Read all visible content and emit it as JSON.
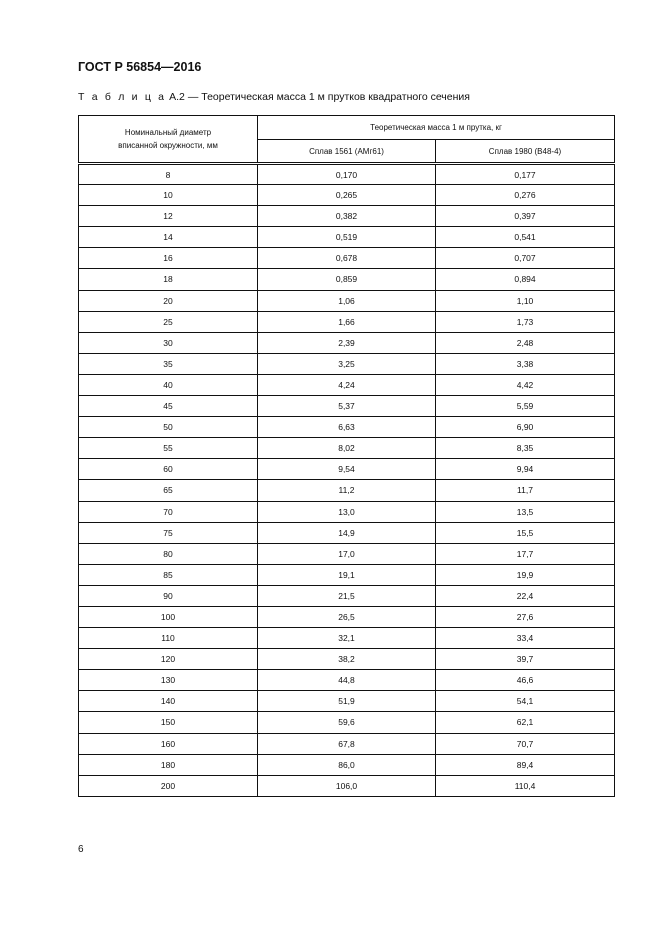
{
  "document": {
    "code": "ГОСТ Р 56854—2016",
    "table_label": "Т а б л и ц а",
    "table_number": "А.2",
    "table_title": " — Теоретическая масса 1 м прутков квадратного сечения",
    "page_number": "6"
  },
  "table": {
    "col1_header": "Номинальный диаметр вписанной окружности, мм",
    "group_header": "Теоретическая масса 1 м прутка, кг",
    "col2_header": "Сплав 1561 (АМг61)",
    "col3_header": "Сплав 1980 (В48-4)",
    "rows": [
      [
        "8",
        "0,170",
        "0,177"
      ],
      [
        "10",
        "0,265",
        "0,276"
      ],
      [
        "12",
        "0,382",
        "0,397"
      ],
      [
        "14",
        "0,519",
        "0,541"
      ],
      [
        "16",
        "0,678",
        "0,707"
      ],
      [
        "18",
        "0,859",
        "0,894"
      ],
      [
        "20",
        "1,06",
        "1,10"
      ],
      [
        "25",
        "1,66",
        "1,73"
      ],
      [
        "30",
        "2,39",
        "2,48"
      ],
      [
        "35",
        "3,25",
        "3,38"
      ],
      [
        "40",
        "4,24",
        "4,42"
      ],
      [
        "45",
        "5,37",
        "5,59"
      ],
      [
        "50",
        "6,63",
        "6,90"
      ],
      [
        "55",
        "8,02",
        "8,35"
      ],
      [
        "60",
        "9,54",
        "9,94"
      ],
      [
        "65",
        "11,2",
        "11,7"
      ],
      [
        "70",
        "13,0",
        "13,5"
      ],
      [
        "75",
        "14,9",
        "15,5"
      ],
      [
        "80",
        "17,0",
        "17,7"
      ],
      [
        "85",
        "19,1",
        "19,9"
      ],
      [
        "90",
        "21,5",
        "22,4"
      ],
      [
        "100",
        "26,5",
        "27,6"
      ],
      [
        "110",
        "32,1",
        "33,4"
      ],
      [
        "120",
        "38,2",
        "39,7"
      ],
      [
        "130",
        "44,8",
        "46,6"
      ],
      [
        "140",
        "51,9",
        "54,1"
      ],
      [
        "150",
        "59,6",
        "62,1"
      ],
      [
        "160",
        "67,8",
        "70,7"
      ],
      [
        "180",
        "86,0",
        "89,4"
      ],
      [
        "200",
        "106,0",
        "110,4"
      ]
    ]
  }
}
